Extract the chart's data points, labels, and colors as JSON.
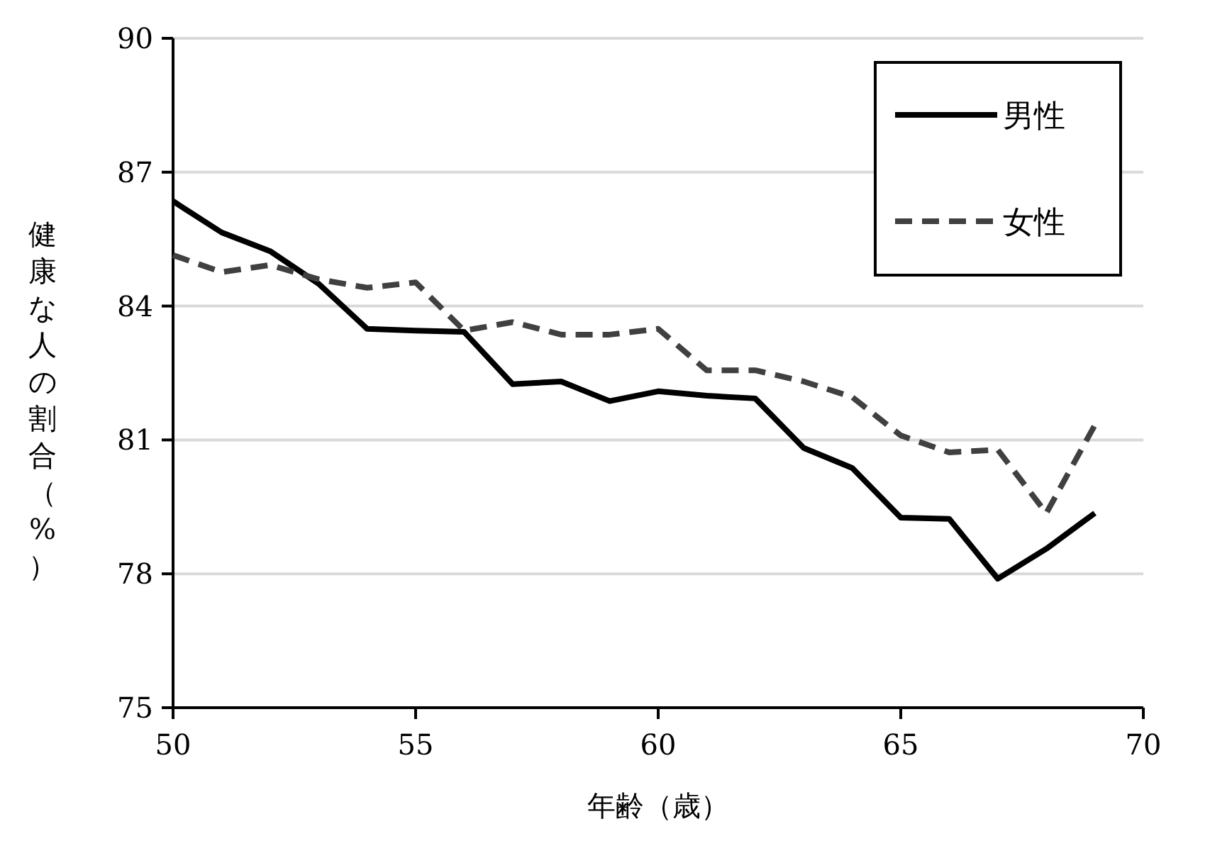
{
  "chart_data": {
    "type": "line",
    "xlabel": "年齢（歳）",
    "ylabel": "健康な人の割合（%）",
    "x": [
      50,
      51,
      52,
      53,
      54,
      55,
      56,
      57,
      58,
      59,
      60,
      61,
      62,
      63,
      64,
      65,
      66,
      67,
      68,
      69
    ],
    "series": [
      {
        "name": "男性",
        "color": "#000000",
        "line_style": "solid",
        "values": [
          86.35,
          85.65,
          85.23,
          84.5,
          83.49,
          83.45,
          83.42,
          82.25,
          82.31,
          81.87,
          82.09,
          81.99,
          81.93,
          80.82,
          80.37,
          79.26,
          79.23,
          77.89,
          78.56,
          79.36
        ]
      },
      {
        "name": "女性",
        "color": "#404040",
        "line_style": "dashed",
        "values": [
          85.14,
          84.76,
          84.92,
          84.6,
          84.41,
          84.53,
          83.45,
          83.64,
          83.36,
          83.36,
          83.49,
          82.56,
          82.56,
          82.31,
          81.96,
          81.1,
          80.72,
          80.78,
          79.36,
          81.33
        ]
      }
    ],
    "xlim": [
      50,
      70
    ],
    "ylim": [
      75,
      90
    ],
    "xticks": [
      50,
      55,
      60,
      65,
      70
    ],
    "yticks": [
      75,
      78,
      81,
      84,
      87,
      90
    ],
    "grid": "y",
    "legend": "top right",
    "marker": "none"
  }
}
